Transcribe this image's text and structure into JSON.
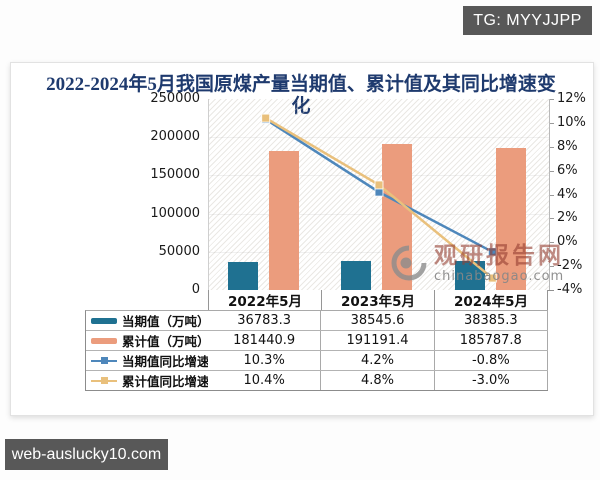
{
  "overlays": {
    "tg_badge": "TG: MYYJJPP",
    "site_badge": "web-auslucky10.com"
  },
  "watermark": {
    "name": "观研报告网",
    "domain": "chinabaogao.com"
  },
  "title": {
    "line1": "2022-2024年5月我国原煤产量当期值、累计值及其同比增速变",
    "line2": "化"
  },
  "chart_data": {
    "type": "combo-bar-line",
    "title": "2022-2024年5月我国原煤产量当期值、累计值及其同比增速变化",
    "categories": [
      "2022年5月",
      "2023年5月",
      "2024年5月"
    ],
    "series": [
      {
        "name": "当期值（万吨）",
        "type": "bar",
        "axis": "left",
        "color": "#1f7191",
        "values": [
          36783.3,
          38545.6,
          38385.3
        ],
        "display": [
          "36783.3",
          "38545.6",
          "38385.3"
        ]
      },
      {
        "name": "累计值（万吨）",
        "type": "bar",
        "axis": "left",
        "color": "#eb9c7d",
        "values": [
          181440.9,
          191191.4,
          185787.8
        ],
        "display": [
          "181440.9",
          "191191.4",
          "185787.8"
        ]
      },
      {
        "name": "当期值同比增速",
        "type": "line",
        "axis": "right",
        "color": "#4e87bb",
        "values": [
          10.3,
          4.2,
          -0.8
        ],
        "display": [
          "10.3%",
          "4.2%",
          "-0.8%"
        ]
      },
      {
        "name": "累计值同比增速",
        "type": "line",
        "axis": "right",
        "color": "#e9c07c",
        "values": [
          10.4,
          4.8,
          -3.0
        ],
        "display": [
          "10.4%",
          "4.8%",
          "-3.0%"
        ]
      }
    ],
    "left_axis": {
      "min": 0,
      "max": 250000,
      "ticks": [
        "250000",
        "200000",
        "150000",
        "100000",
        "50000",
        "0"
      ]
    },
    "right_axis": {
      "min": -4,
      "max": 12,
      "ticks": [
        "12%",
        "10%",
        "8%",
        "6%",
        "4%",
        "2%",
        "0%",
        "-2%",
        "-4%"
      ]
    },
    "background": "diagonal-hatch",
    "grid": "faint-horizontal",
    "legend_position": "table-left-column"
  }
}
